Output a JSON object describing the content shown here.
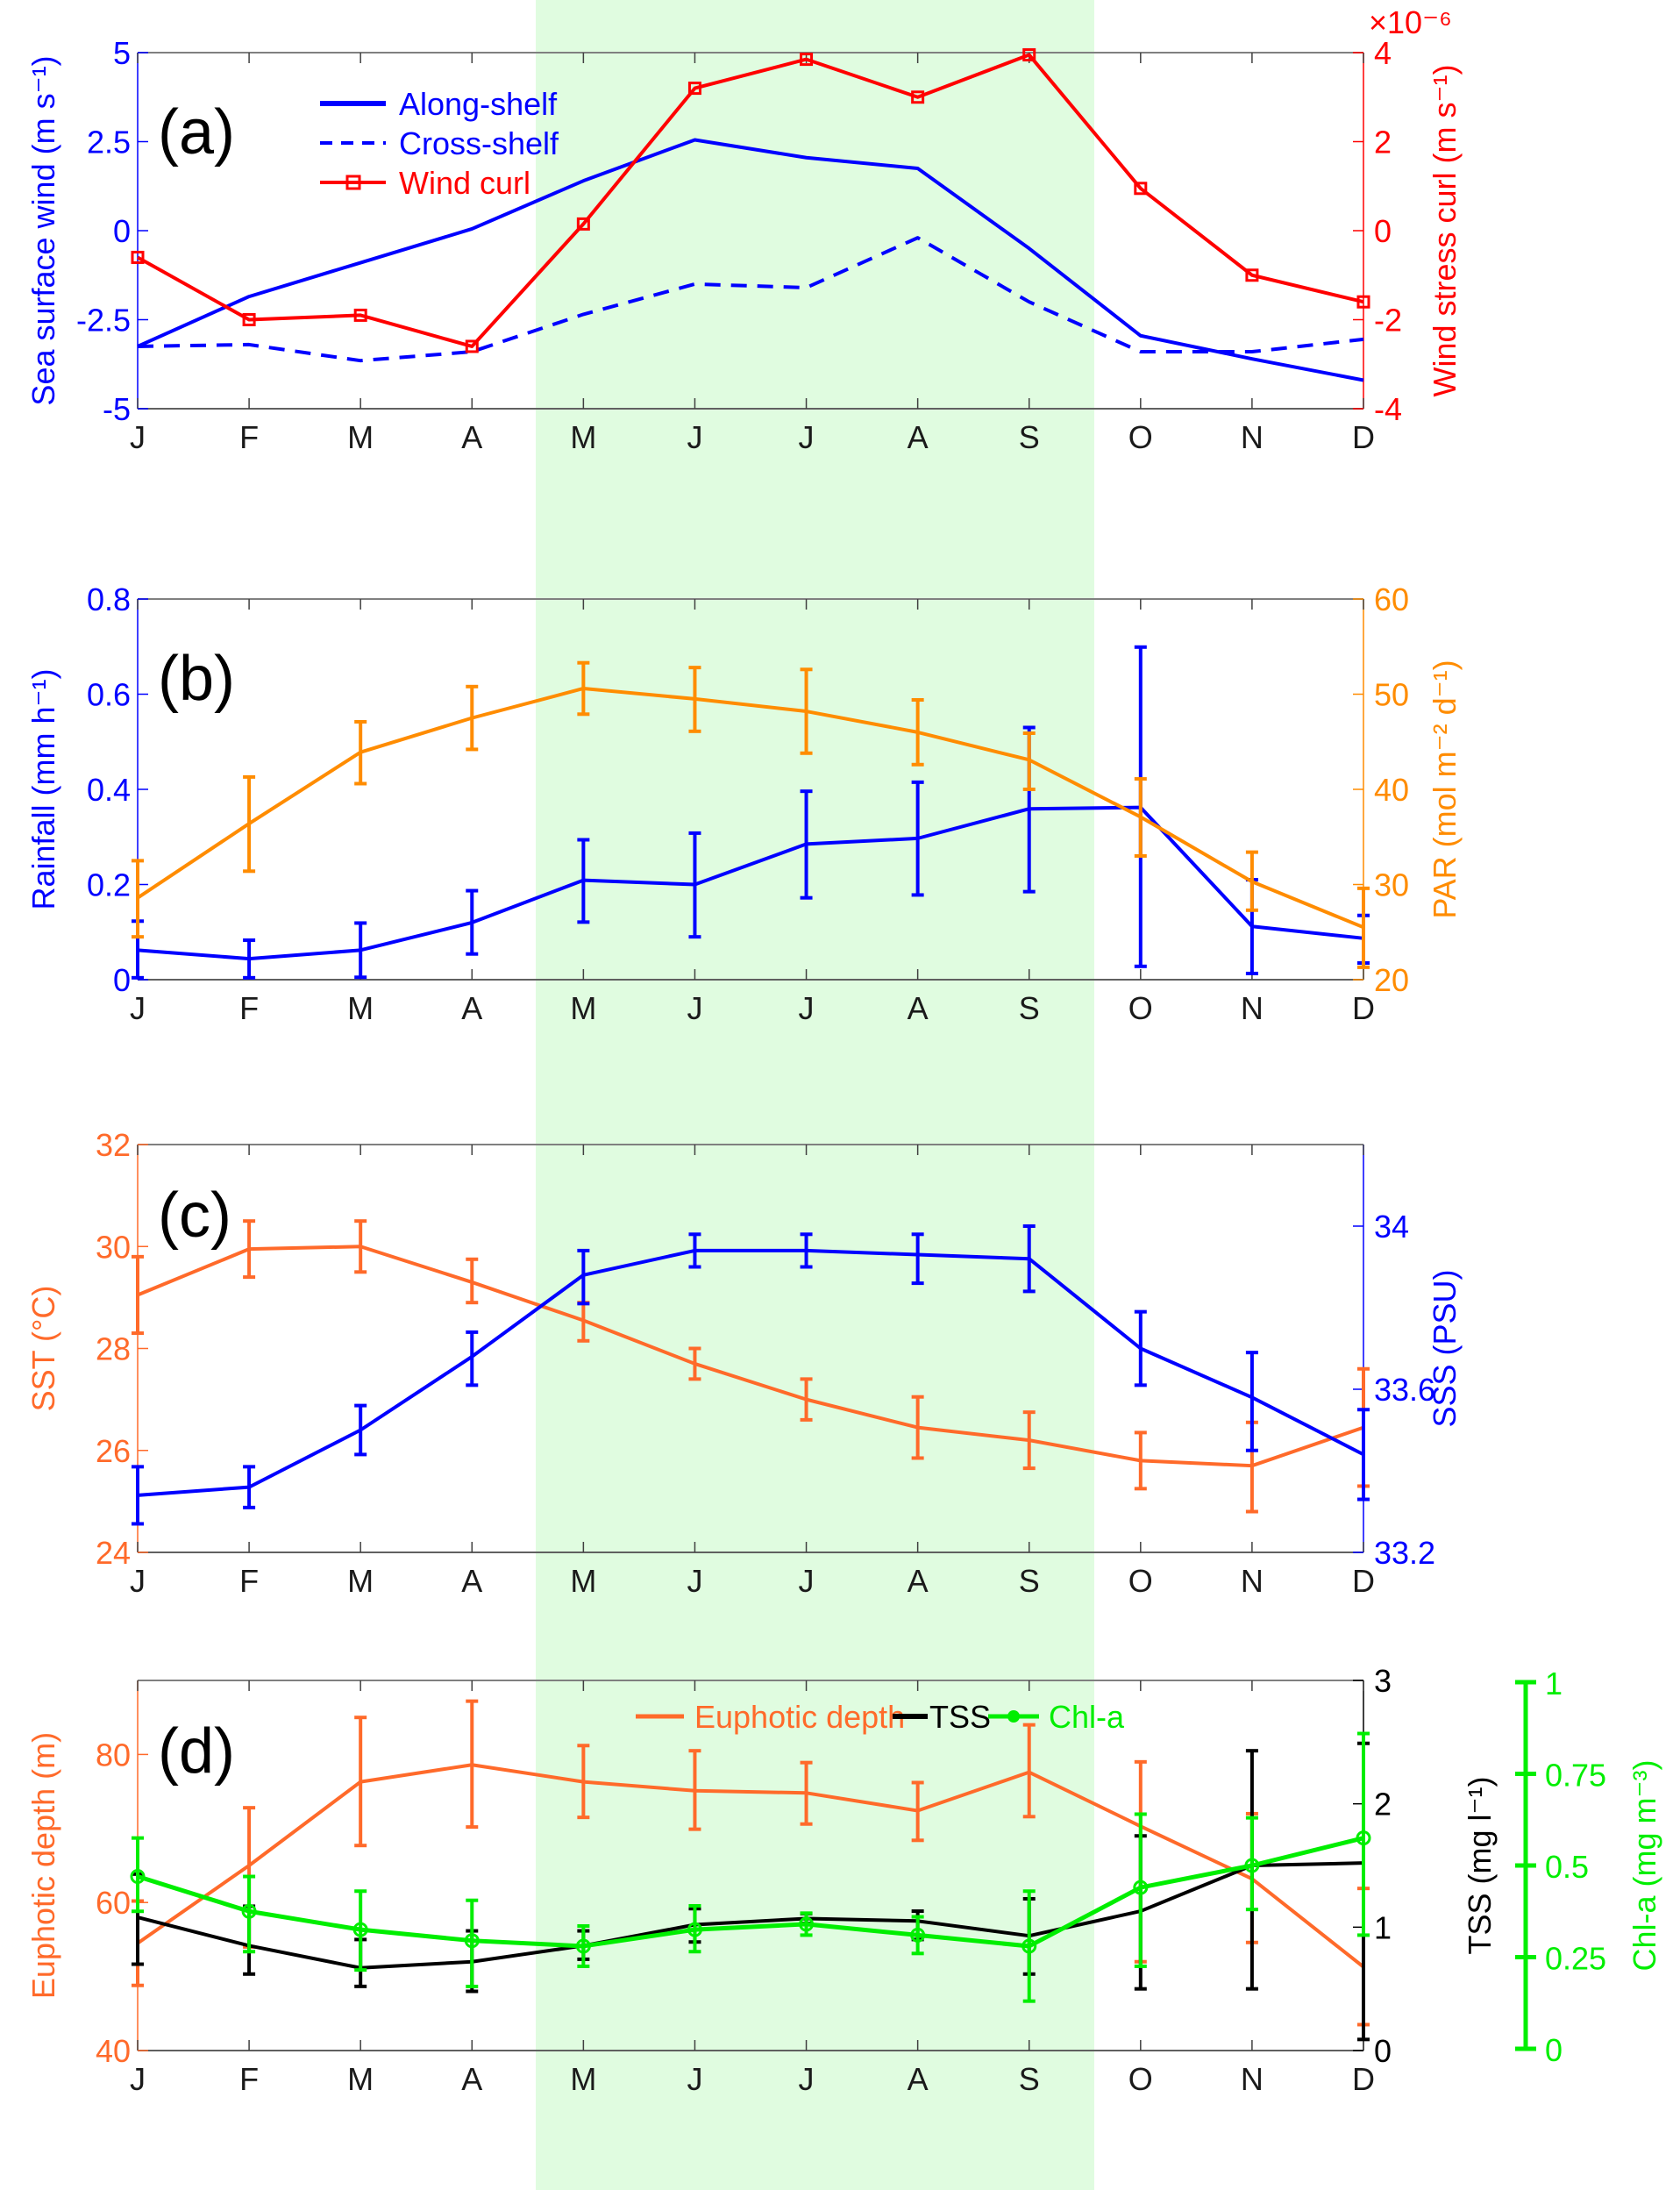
{
  "chart_data": [
    {
      "type": "line",
      "panel_label": "(a)",
      "categories": [
        "J",
        "F",
        "M",
        "A",
        "M",
        "J",
        "J",
        "A",
        "S",
        "O",
        "N",
        "D"
      ],
      "shaded_period": {
        "from": "mid-Apr",
        "to": "end-Sep",
        "color": "#e0fce0"
      },
      "left_axis": {
        "label": "Sea surface wind (m s⁻¹)",
        "ylim": [
          -5,
          5
        ],
        "ticks": [
          "5",
          "2.5",
          "0",
          "-2.5",
          "-5"
        ],
        "tick_values": [
          5,
          2.5,
          0,
          -2.5,
          -5
        ],
        "color": "#0000ff"
      },
      "right_axis": {
        "label": "Wind stress curl (m s⁻¹)",
        "ylim": [
          -4,
          4
        ],
        "ticks": [
          "4",
          "2",
          "0",
          "-2",
          "-4"
        ],
        "tick_values": [
          4,
          2,
          0,
          -2,
          -4
        ],
        "exponent": "×10⁻⁶",
        "color": "#ff0000"
      },
      "legend": [
        "Along-shelf",
        "Cross-shelf",
        "Wind curl"
      ],
      "series": [
        {
          "name": "Along-shelf",
          "axis": "left",
          "color": "#0000ff",
          "style": "solid",
          "values": [
            -3.25,
            -1.85,
            -0.9,
            0.05,
            1.4,
            2.55,
            2.05,
            1.75,
            -0.5,
            -2.95,
            -3.6,
            -4.2
          ]
        },
        {
          "name": "Cross-shelf",
          "axis": "left",
          "color": "#0000ff",
          "style": "dashed",
          "values": [
            -3.25,
            -3.2,
            -3.65,
            -3.4,
            -2.35,
            -1.5,
            -1.6,
            -0.2,
            -2.0,
            -3.4,
            -3.4,
            -3.05
          ]
        },
        {
          "name": "Wind curl",
          "axis": "right",
          "color": "#ff0000",
          "style": "solid-square",
          "values": [
            -0.6,
            -2.0,
            -1.9,
            -2.6,
            0.15,
            3.2,
            3.85,
            3.0,
            3.95,
            0.95,
            -1.0,
            -1.6
          ]
        }
      ]
    },
    {
      "type": "line",
      "panel_label": "(b)",
      "categories": [
        "J",
        "F",
        "M",
        "A",
        "M",
        "J",
        "J",
        "A",
        "S",
        "O",
        "N",
        "D"
      ],
      "left_axis": {
        "label": "Rainfall (mm h⁻¹)",
        "ylim": [
          0,
          0.8
        ],
        "ticks": [
          "0.8",
          "0.6",
          "0.4",
          "0.2",
          "0"
        ],
        "tick_values": [
          0.8,
          0.6,
          0.4,
          0.2,
          0
        ],
        "color": "#0000ff"
      },
      "right_axis": {
        "label": "PAR (mol m⁻² d⁻¹)",
        "ylim": [
          20,
          60
        ],
        "ticks": [
          "60",
          "50",
          "40",
          "30",
          "20"
        ],
        "tick_values": [
          60,
          50,
          40,
          30,
          20
        ],
        "color": "#ff8c00"
      },
      "series": [
        {
          "name": "Rainfall",
          "axis": "left",
          "color": "#0000ff",
          "values": [
            0.062,
            0.044,
            0.062,
            0.12,
            0.209,
            0.2,
            0.285,
            0.297,
            0.359,
            0.362,
            0.112,
            0.087
          ],
          "err_low": [
            0.004,
            0.004,
            0.005,
            0.054,
            0.121,
            0.09,
            0.172,
            0.178,
            0.185,
            0.028,
            0.013,
            0.035
          ],
          "err_high": [
            0.123,
            0.083,
            0.119,
            0.187,
            0.294,
            0.308,
            0.396,
            0.415,
            0.53,
            0.699,
            0.21,
            0.135
          ]
        },
        {
          "name": "PAR",
          "axis": "right",
          "color": "#ff8c00",
          "values": [
            28.6,
            36.4,
            43.9,
            47.5,
            50.6,
            49.5,
            48.2,
            46.0,
            43.1,
            37.1,
            30.3,
            25.5
          ],
          "err_low": [
            24.5,
            31.4,
            40.6,
            44.2,
            47.9,
            46.1,
            43.8,
            42.6,
            40.0,
            33.0,
            27.3,
            21.3
          ],
          "err_high": [
            32.5,
            41.3,
            47.1,
            50.8,
            53.3,
            52.8,
            52.6,
            49.4,
            45.9,
            41.1,
            33.4,
            29.6
          ]
        }
      ]
    },
    {
      "type": "line",
      "panel_label": "(c)",
      "categories": [
        "J",
        "F",
        "M",
        "A",
        "M",
        "J",
        "J",
        "A",
        "S",
        "O",
        "N",
        "D"
      ],
      "left_axis": {
        "label": "SST (°C)",
        "ylim": [
          24,
          32
        ],
        "ticks": [
          "32",
          "30",
          "28",
          "26",
          "24"
        ],
        "tick_values": [
          32,
          30,
          28,
          26,
          24
        ],
        "color": "#ff6a2a"
      },
      "right_axis": {
        "label": "SSS (PSU)",
        "ylim": [
          33.2,
          34.2
        ],
        "ticks": [
          "34",
          "33.6",
          "33.2"
        ],
        "tick_values": [
          34,
          33.6,
          33.2
        ],
        "color": "#0000ff"
      },
      "series": [
        {
          "name": "SST",
          "axis": "left",
          "color": "#ff6a2a",
          "values": [
            29.05,
            29.95,
            30.0,
            29.3,
            28.55,
            27.7,
            27.0,
            26.45,
            26.2,
            25.8,
            25.7,
            26.45
          ],
          "err_low": [
            28.3,
            29.4,
            29.5,
            28.9,
            28.15,
            27.4,
            26.6,
            25.85,
            25.65,
            25.25,
            24.8,
            25.3
          ],
          "err_high": [
            29.8,
            30.5,
            30.5,
            29.75,
            28.9,
            28.0,
            27.4,
            27.05,
            26.75,
            26.35,
            26.55,
            27.6
          ]
        },
        {
          "name": "SSS",
          "axis": "right",
          "color": "#0000ff",
          "values": [
            33.34,
            33.36,
            33.5,
            33.68,
            33.88,
            33.94,
            33.94,
            33.93,
            33.92,
            33.7,
            33.58,
            33.44
          ],
          "err_low": [
            33.27,
            33.31,
            33.44,
            33.61,
            33.81,
            33.9,
            33.9,
            33.86,
            33.84,
            33.61,
            33.45,
            33.33
          ],
          "err_high": [
            33.41,
            33.41,
            33.56,
            33.74,
            33.94,
            33.98,
            33.98,
            33.98,
            34.0,
            33.79,
            33.69,
            33.55
          ]
        }
      ]
    },
    {
      "type": "line",
      "panel_label": "(d)",
      "categories": [
        "J",
        "F",
        "M",
        "A",
        "M",
        "J",
        "J",
        "A",
        "S",
        "O",
        "N",
        "D"
      ],
      "legend": [
        "Euphotic depth",
        "TSS",
        "Chl-a"
      ],
      "left_axis": {
        "label": "Euphotic depth (m)",
        "ylim": [
          40,
          90
        ],
        "ticks": [
          "80",
          "60",
          "40"
        ],
        "tick_values": [
          80,
          60,
          40
        ],
        "color": "#ff6a2a"
      },
      "right_axis": {
        "label": "TSS (mg l⁻¹)",
        "ylim": [
          0,
          3
        ],
        "ticks": [
          "3",
          "2",
          "1",
          "0"
        ],
        "tick_values": [
          3,
          2,
          1,
          0
        ],
        "color": "#000000"
      },
      "right_axis_2": {
        "label": "Chl-a (mg m⁻³)",
        "ylim": [
          0,
          1
        ],
        "ticks": [
          "1",
          "0.75",
          "0.5",
          "0.25",
          "0"
        ],
        "tick_values": [
          1,
          0.75,
          0.5,
          0.25,
          0
        ],
        "color": "#00ee00"
      },
      "series": [
        {
          "name": "Euphotic depth",
          "axis": "left",
          "color": "#ff6a2a",
          "values": [
            54.5,
            65.0,
            76.3,
            78.6,
            76.3,
            75.1,
            74.8,
            72.4,
            77.6,
            70.3,
            63.2,
            51.3
          ],
          "err_low": [
            48.8,
            54.0,
            67.7,
            70.2,
            71.5,
            69.9,
            70.6,
            68.4,
            71.6,
            52.0,
            54.6,
            43.5
          ],
          "err_high": [
            60.2,
            72.8,
            85.0,
            87.2,
            81.2,
            80.5,
            78.9,
            76.2,
            84.0,
            79.0,
            72.0,
            61.9
          ]
        },
        {
          "name": "TSS",
          "axis": "right",
          "color": "#000000",
          "values": [
            1.08,
            0.85,
            0.67,
            0.72,
            0.85,
            1.02,
            1.07,
            1.05,
            0.93,
            1.13,
            1.5,
            1.52
          ],
          "err_low": [
            0.7,
            0.62,
            0.52,
            0.48,
            0.74,
            0.88,
            1.03,
            0.9,
            0.62,
            0.5,
            0.5,
            0.09
          ],
          "err_high": [
            1.43,
            1.17,
            0.9,
            0.97,
            0.97,
            1.15,
            1.11,
            1.13,
            1.23,
            1.74,
            2.43,
            2.49
          ]
        },
        {
          "name": "Chl-a",
          "axis": "right2",
          "color": "#00ee00",
          "values": [
            0.47,
            0.375,
            0.325,
            0.295,
            0.28,
            0.325,
            0.34,
            0.31,
            0.28,
            0.44,
            0.5,
            0.575
          ],
          "err_low": [
            0.375,
            0.265,
            0.215,
            0.17,
            0.225,
            0.265,
            0.31,
            0.26,
            0.13,
            0.225,
            0.38,
            0.31
          ],
          "err_high": [
            0.575,
            0.47,
            0.43,
            0.405,
            0.335,
            0.39,
            0.37,
            0.36,
            0.43,
            0.64,
            0.63,
            0.86
          ]
        }
      ]
    }
  ]
}
